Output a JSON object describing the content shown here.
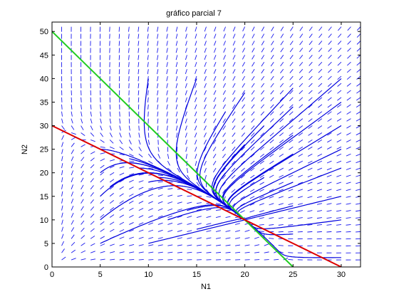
{
  "chart_data": {
    "type": "line",
    "title": "gráfico parcial 7",
    "xlabel": "N1",
    "ylabel": "N2",
    "xlim": [
      0,
      32
    ],
    "ylim": [
      0,
      52
    ],
    "x_ticks": [
      0,
      5,
      10,
      15,
      20,
      25,
      30
    ],
    "y_ticks": [
      0,
      5,
      10,
      15,
      20,
      25,
      30,
      35,
      40,
      45,
      50
    ],
    "grid": false,
    "legend": "none",
    "colors": {
      "trajectory": "#0000dd",
      "field": "#1a1aee",
      "green_line": "#22cc22",
      "red_line": "#dd0000"
    },
    "series": [
      {
        "color": "#22cc22",
        "x": [
          0,
          25
        ],
        "y": [
          50,
          0
        ]
      },
      {
        "color": "#dd0000",
        "x": [
          0,
          30
        ],
        "y": [
          30,
          0
        ]
      }
    ],
    "direction_field": {
      "x_range": [
        0,
        32
      ],
      "x_step": 1,
      "y_range": [
        0,
        51
      ],
      "y_step": 1.5
    },
    "trajectory_starts": [
      [
        5,
        15
      ],
      [
        5,
        10
      ],
      [
        5,
        5
      ],
      [
        5,
        20
      ],
      [
        5,
        25
      ],
      [
        6,
        17
      ],
      [
        7,
        22
      ],
      [
        8,
        23
      ],
      [
        9,
        21
      ],
      [
        10,
        18
      ],
      [
        11,
        19
      ],
      [
        10,
        5
      ],
      [
        12,
        10
      ],
      [
        14,
        12
      ],
      [
        15,
        8
      ],
      [
        20,
        10
      ],
      [
        25,
        7
      ],
      [
        30,
        2
      ],
      [
        10,
        40
      ],
      [
        15,
        40
      ],
      [
        20,
        37
      ],
      [
        25,
        38
      ],
      [
        30,
        40
      ],
      [
        18,
        33
      ],
      [
        22,
        30
      ],
      [
        25,
        34
      ],
      [
        30,
        35
      ],
      [
        30,
        30
      ],
      [
        25,
        28
      ],
      [
        30,
        25
      ],
      [
        20,
        26
      ],
      [
        25,
        24
      ],
      [
        30,
        21
      ],
      [
        18,
        20
      ],
      [
        22,
        19
      ],
      [
        25,
        18
      ],
      [
        30,
        15
      ],
      [
        25,
        13
      ],
      [
        30,
        10
      ]
    ]
  }
}
